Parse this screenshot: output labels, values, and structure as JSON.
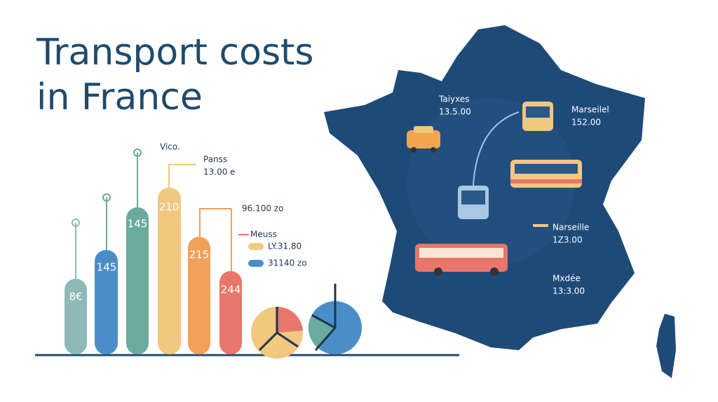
{
  "title": [
    "Transport costs",
    "in France"
  ],
  "bar_labels": [
    "8€",
    "145",
    "145",
    "210",
    "215",
    "244"
  ],
  "callouts": [
    {
      "label": "Vico."
    },
    {
      "label": "Panss",
      "value": "13.00 e"
    },
    {
      "value": "96.100 zo"
    },
    {
      "label": "Meuss"
    }
  ],
  "legend": [
    "LY.31.80",
    "31140 zo"
  ],
  "map_labels": [
    {
      "label": "Taiyxes",
      "value": "13.5.00"
    },
    {
      "label": "Marseilel",
      "value": "152.00"
    },
    {
      "label": "Narseille",
      "value": "1Z3.00"
    },
    {
      "label": "Mxdée",
      "value": "13:3.00"
    }
  ]
}
